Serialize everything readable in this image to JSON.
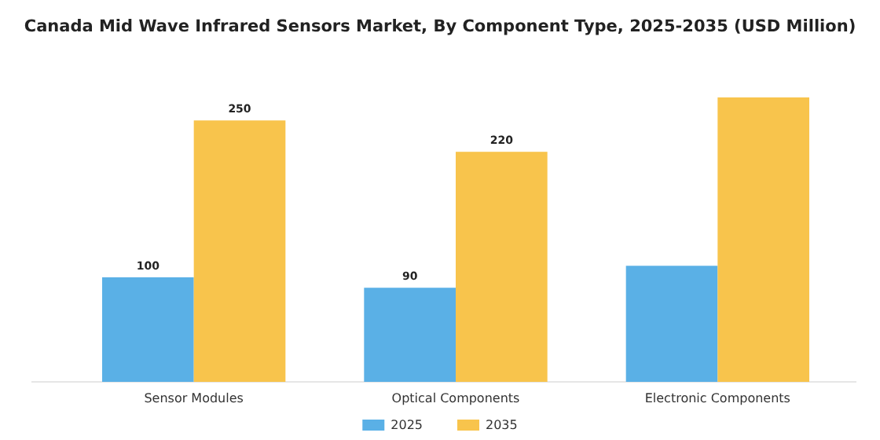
{
  "chart_data": {
    "type": "bar",
    "title": "Canada Mid Wave Infrared Sensors Market, By Component Type, 2025-2035 (USD Million)",
    "categories": [
      "Sensor Modules",
      "Optical Components",
      "Electronic Components"
    ],
    "series": [
      {
        "name": "2025",
        "color": "#5ab0e6",
        "values": [
          100,
          90,
          111
        ],
        "value_labels": [
          "100",
          "90",
          null
        ]
      },
      {
        "name": "2035",
        "color": "#f8c44c",
        "values": [
          250,
          220,
          272
        ],
        "value_labels": [
          "250",
          "220",
          null
        ]
      }
    ],
    "legend": "bottom"
  }
}
